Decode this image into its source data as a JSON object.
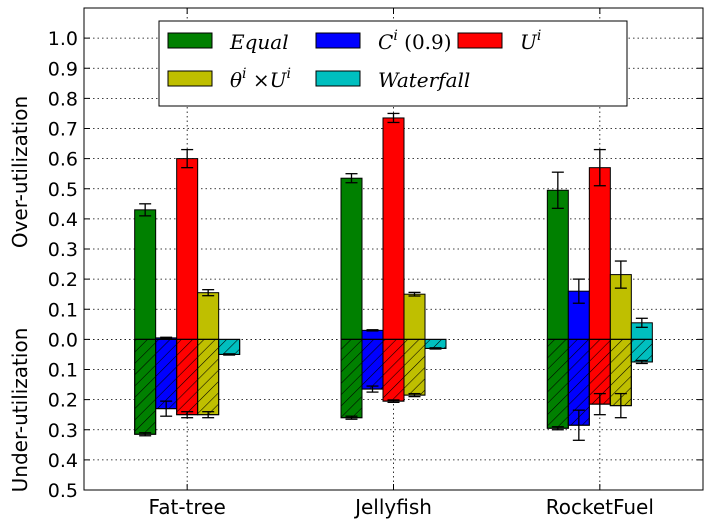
{
  "chart_data": {
    "type": "bar",
    "categories": [
      "Fat-tree",
      "Jellyfish",
      "RocketFuel"
    ],
    "over_label": "Over-utilization",
    "under_label": "Under-utilization",
    "yticks_over": [
      "0.0",
      "0.1",
      "0.2",
      "0.3",
      "0.4",
      "0.5",
      "0.6",
      "0.7",
      "0.8",
      "0.9",
      "1.0"
    ],
    "yticks_under": [
      "0.1",
      "0.2",
      "0.3",
      "0.4",
      "0.5"
    ],
    "ylim": [
      -0.5,
      1.1
    ],
    "grid": true,
    "legend_position": "top",
    "series": [
      {
        "name": "Equal",
        "color": "#008000",
        "over": [
          0.43,
          0.535,
          0.495
        ],
        "over_err": [
          0.02,
          0.015,
          0.06
        ],
        "under": [
          0.315,
          0.26,
          0.295
        ],
        "under_err": [
          0.005,
          0.005,
          0.005
        ]
      },
      {
        "name": "C^i (0.9)",
        "color": "#0000ff",
        "over": [
          0.005,
          0.03,
          0.16
        ],
        "over_err": [
          0.002,
          0.002,
          0.04
        ],
        "under": [
          0.23,
          0.165,
          0.285
        ],
        "under_err": [
          0.025,
          0.01,
          0.05
        ]
      },
      {
        "name": "U^i",
        "color": "#ff0000",
        "over": [
          0.6,
          0.735,
          0.57
        ],
        "over_err": [
          0.03,
          0.015,
          0.06
        ],
        "under": [
          0.25,
          0.205,
          0.215
        ],
        "under_err": [
          0.01,
          0.004,
          0.035
        ]
      },
      {
        "name": "θ^i ×U^i",
        "color": "#bfbf00",
        "over": [
          0.155,
          0.15,
          0.215
        ],
        "over_err": [
          0.01,
          0.006,
          0.045
        ],
        "under": [
          0.25,
          0.185,
          0.22
        ],
        "under_err": [
          0.01,
          0.005,
          0.04
        ]
      },
      {
        "name": "Waterfall",
        "color": "#00bfbf",
        "over": [
          0.0,
          0.0,
          0.055
        ],
        "over_err": [
          0.0,
          0.0,
          0.015
        ],
        "under": [
          0.05,
          0.03,
          0.075
        ],
        "under_err": [
          0.002,
          0.002,
          0.005
        ]
      }
    ],
    "legend_labels": [
      {
        "base": "Equal",
        "sup": ""
      },
      {
        "base": "C",
        "sup": "i",
        "suffix": " (0.9)"
      },
      {
        "base": "U",
        "sup": "i"
      },
      {
        "base": "θ",
        "sup": "i",
        "suffix": " ×U",
        "sup2": "i"
      },
      {
        "base": "Waterfall",
        "sup": ""
      }
    ]
  }
}
